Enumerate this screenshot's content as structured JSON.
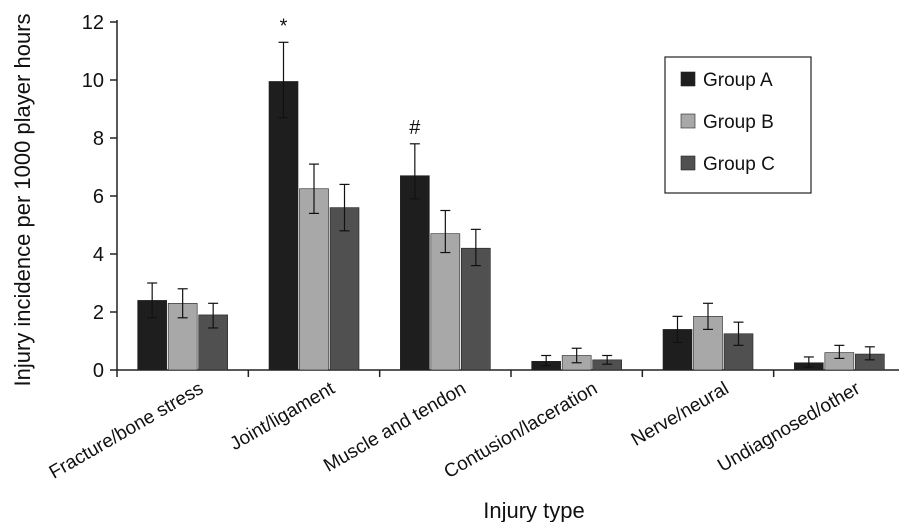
{
  "chart_data": {
    "type": "bar",
    "title": "",
    "xlabel": "Injury type",
    "ylabel": "Injury incidence per 1000 player hours",
    "ylim": [
      0,
      12
    ],
    "yticks": [
      0,
      2,
      4,
      6,
      8,
      10,
      12
    ],
    "grid": false,
    "legend_position": "top-right",
    "categories": [
      "Fracture/bone stress",
      "Joint/ligament",
      "Muscle and tendon",
      "Contusion/laceration",
      "Nerve/neural",
      "Undiagnosed/other"
    ],
    "series": [
      {
        "name": "Group A",
        "color": "#1e1e1e",
        "values": [
          2.4,
          9.95,
          6.7,
          0.3,
          1.4,
          0.25
        ],
        "error_low": [
          1.8,
          8.7,
          5.9,
          0.15,
          0.95,
          0.1
        ],
        "error_high": [
          3.0,
          11.3,
          7.8,
          0.5,
          1.85,
          0.45
        ]
      },
      {
        "name": "Group B",
        "color": "#a8a8a8",
        "values": [
          2.3,
          6.25,
          4.7,
          0.5,
          1.85,
          0.6
        ],
        "error_low": [
          1.8,
          5.4,
          4.05,
          0.25,
          1.4,
          0.4
        ],
        "error_high": [
          2.8,
          7.1,
          5.5,
          0.75,
          2.3,
          0.85
        ]
      },
      {
        "name": "Group C",
        "color": "#505050",
        "values": [
          1.9,
          5.6,
          4.2,
          0.35,
          1.25,
          0.55
        ],
        "error_low": [
          1.45,
          4.8,
          3.6,
          0.2,
          0.85,
          0.35
        ],
        "error_high": [
          2.3,
          6.4,
          4.85,
          0.5,
          1.65,
          0.8
        ]
      }
    ],
    "annotations": [
      {
        "text": "*",
        "category": "Joint/ligament",
        "series": "Group A"
      },
      {
        "text": "#",
        "category": "Muscle and tendon",
        "series": "Group A"
      }
    ]
  }
}
